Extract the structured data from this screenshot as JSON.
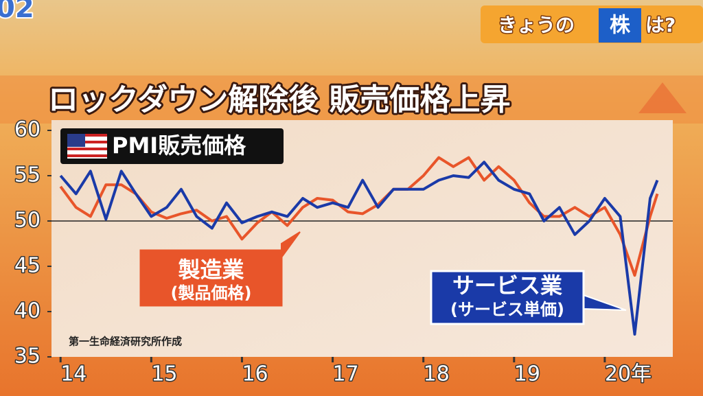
{
  "channel": "02",
  "corner": {
    "pre": "きょうの",
    "highlight": "株",
    "post": "は?"
  },
  "chart_data": {
    "type": "line",
    "title": "ロックダウン解除後 販売価格上昇",
    "subtitle": "PMI販売価格",
    "source": "第一生命経済研究所作成",
    "x": [
      2014.0,
      2014.17,
      2014.33,
      2014.5,
      2014.67,
      2014.83,
      2015.0,
      2015.17,
      2015.33,
      2015.5,
      2015.67,
      2015.83,
      2016.0,
      2016.17,
      2016.33,
      2016.5,
      2016.67,
      2016.83,
      2017.0,
      2017.17,
      2017.33,
      2017.5,
      2017.67,
      2017.83,
      2018.0,
      2018.17,
      2018.33,
      2018.5,
      2018.67,
      2018.83,
      2019.0,
      2019.17,
      2019.33,
      2019.5,
      2019.67,
      2019.83,
      2020.0,
      2020.17,
      2020.33,
      2020.5,
      2020.58
    ],
    "series": [
      {
        "name": "製造業",
        "sub": "(製品価格)",
        "color": "#e8552a",
        "values": [
          53.8,
          51.5,
          50.5,
          54,
          54,
          53,
          51,
          50.3,
          50.8,
          51.2,
          50,
          50.5,
          48,
          49.8,
          51,
          49.5,
          51.5,
          52.5,
          52.3,
          51,
          50.8,
          51.8,
          53.5,
          53.5,
          55,
          57,
          56,
          57,
          54.5,
          56,
          54.5,
          52,
          50.5,
          50.5,
          51.5,
          50.5,
          51.5,
          48.5,
          44,
          50.5,
          53
        ]
      },
      {
        "name": "サービス業",
        "sub": "(サービス単価)",
        "color": "#1a3aa8",
        "values": [
          55,
          53,
          55.5,
          50.2,
          55.5,
          53,
          50.5,
          51.5,
          53.5,
          50.5,
          49.2,
          52,
          49.8,
          50.5,
          51,
          50.5,
          52.5,
          51.5,
          52,
          51.5,
          54.5,
          51.5,
          53.5,
          53.5,
          53.5,
          54.5,
          55,
          54.8,
          56.5,
          54.5,
          53.5,
          53,
          50,
          51.5,
          48.5,
          50,
          52.5,
          50.5,
          37.5,
          52.5,
          54.5
        ]
      }
    ],
    "xlim": [
      2013.9,
      2020.75
    ],
    "xticks": [
      {
        "value": 2014,
        "label": "14"
      },
      {
        "value": 2015,
        "label": "15"
      },
      {
        "value": 2016,
        "label": "16"
      },
      {
        "value": 2017,
        "label": "17"
      },
      {
        "value": 2018,
        "label": "18"
      },
      {
        "value": 2019,
        "label": "19"
      },
      {
        "value": 2020,
        "label": "20年"
      }
    ],
    "ylim": [
      35,
      60
    ],
    "yticks": [
      35,
      40,
      45,
      50,
      55,
      60
    ],
    "reference_line": 50
  }
}
